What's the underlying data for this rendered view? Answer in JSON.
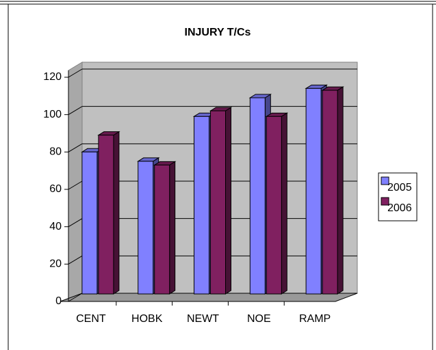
{
  "chart_data": {
    "type": "bar",
    "title": "INJURY T/Cs",
    "categories": [
      "CENT",
      "HOBK",
      "NEWT",
      "NOE",
      "RAMP"
    ],
    "series": [
      {
        "name": "2005",
        "color": "#8080ff",
        "values": [
          76,
          71,
          95,
          105,
          110
        ]
      },
      {
        "name": "2006",
        "color": "#802060",
        "values": [
          85,
          69,
          98,
          95,
          109
        ]
      }
    ],
    "ylim": [
      0,
      120
    ],
    "yticks": [
      0,
      20,
      40,
      60,
      80,
      100,
      120
    ],
    "grid": true,
    "legend": "right"
  }
}
